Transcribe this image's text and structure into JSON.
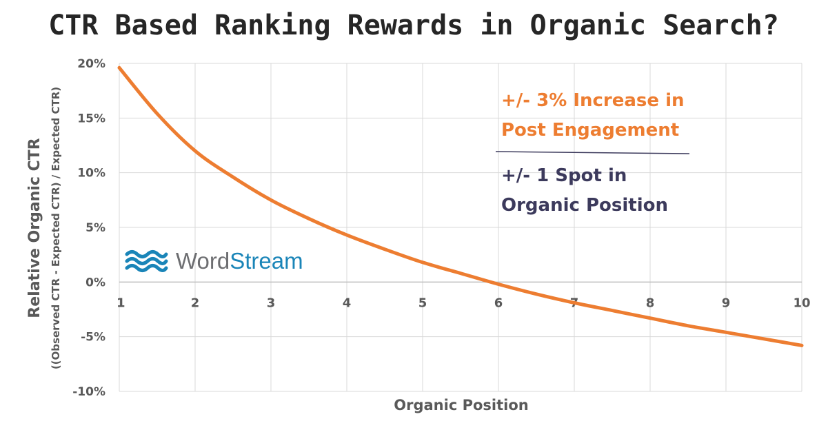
{
  "chart_data": {
    "type": "line",
    "title": "CTR Based Ranking Rewards in Organic Search?",
    "xlabel": "Organic Position",
    "ylabel": "Relative Organic CTR",
    "ylabel_sub": "((Observed CTR - Expected CTR) / Expected CTR)",
    "xlim": [
      1,
      10
    ],
    "ylim": [
      -10,
      20
    ],
    "x_ticks": [
      "1",
      "2",
      "3",
      "4",
      "5",
      "6",
      "7",
      "8",
      "9",
      "10"
    ],
    "y_ticks": [
      "20%",
      "15%",
      "10%",
      "5%",
      "0%",
      "-5%",
      "-10%"
    ],
    "grid": true,
    "series": [
      {
        "color": "#ED7D31",
        "x": [
          1,
          1.5,
          2,
          2.5,
          3,
          3.5,
          4,
          4.5,
          5,
          5.5,
          6,
          6.5,
          7,
          7.5,
          8,
          8.5,
          9,
          9.5,
          10
        ],
        "y": [
          19.6,
          15.4,
          12.0,
          9.6,
          7.5,
          5.8,
          4.3,
          3.0,
          1.8,
          0.8,
          -0.2,
          -1.1,
          -1.9,
          -2.6,
          -3.3,
          -4.0,
          -4.6,
          -5.2,
          -5.8
        ]
      }
    ],
    "annotations": {
      "line1": "+/- 3% Increase in",
      "line2": "Post Engagement",
      "line3": "+/- 1 Spot in",
      "line4": "Organic Position",
      "orange": "#ED7D31",
      "navy": "#3C3A5C"
    },
    "logo": {
      "word1": "Word",
      "word2": "Stream",
      "color1": "#6D6E71",
      "color2": "#1A85B8",
      "icon": "waves-icon"
    }
  }
}
